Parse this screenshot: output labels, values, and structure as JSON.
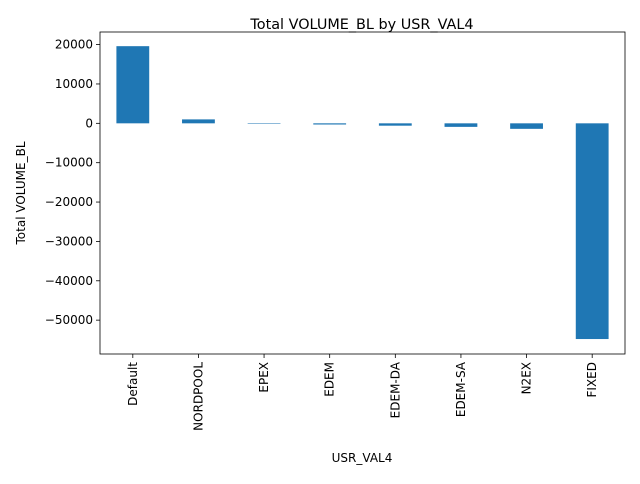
{
  "chart_data": {
    "type": "bar",
    "title": "Total VOLUME_BL by USR_VAL4",
    "xlabel": "USR_VAL4",
    "ylabel": "Total VOLUME_BL",
    "categories": [
      "Default",
      "NORDPOOL",
      "EPEX",
      "EDEM",
      "EDEM-DA",
      "EDEM-SA",
      "N2EX",
      "FIXED"
    ],
    "values": [
      19600,
      1000,
      50,
      -300,
      -600,
      -900,
      -1400,
      -54800
    ],
    "ylim": [
      -58600,
      23200
    ],
    "yticks": [
      20000,
      10000,
      0,
      -10000,
      -20000,
      -30000,
      -40000,
      -50000
    ],
    "ytick_labels": [
      "20000",
      "10000",
      "0",
      "−10000",
      "−20000",
      "−30000",
      "−40000",
      "−50000"
    ],
    "grid": false,
    "legend": "none",
    "bar_color": "#1f77b4"
  }
}
